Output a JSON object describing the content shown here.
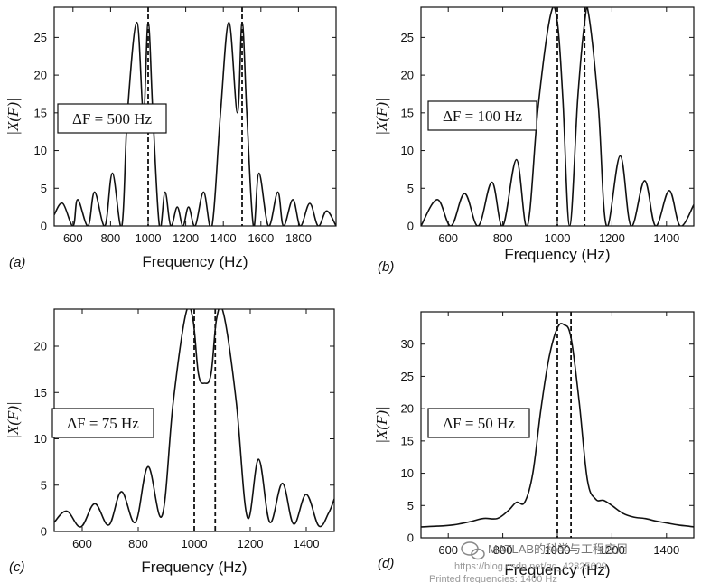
{
  "chart_data": [
    {
      "type": "line",
      "panel_label": "(a)",
      "xlabel": "Frequency (Hz)",
      "ylabel": "|X(F)|",
      "annotation": "ΔF = 500 Hz",
      "xlim": [
        500,
        2000
      ],
      "ylim": [
        0,
        29
      ],
      "xticks": [
        600,
        800,
        1000,
        1200,
        1400,
        1600,
        1800
      ],
      "yticks": [
        0,
        5,
        10,
        15,
        20,
        25
      ],
      "dashed_lines": [
        1000,
        1500
      ],
      "series": [
        {
          "x": [
            500,
            545,
            600,
            625,
            680,
            715,
            770,
            810,
            860,
            890,
            940,
            975,
            1000,
            1025,
            1060,
            1090,
            1120,
            1155,
            1185,
            1215,
            1250,
            1295,
            1340,
            1385,
            1430,
            1475,
            1500,
            1525,
            1560,
            1590,
            1640,
            1690,
            1720,
            1770,
            1810,
            1860,
            1905,
            1950,
            2000
          ],
          "y": [
            1.5,
            3,
            0,
            3.5,
            0,
            4.5,
            0,
            7,
            0,
            15,
            27,
            15,
            27,
            15,
            0,
            4.5,
            0,
            2.5,
            0,
            2.5,
            0,
            4.5,
            0,
            15,
            27,
            15,
            27,
            15,
            0,
            7,
            0,
            4.5,
            0,
            3.5,
            0,
            3,
            0,
            2,
            0
          ]
        }
      ]
    },
    {
      "type": "line",
      "panel_label": "(b)",
      "xlabel": "Frequency (Hz)",
      "ylabel": "|X(F)|",
      "annotation": "ΔF = 100 Hz",
      "xlim": [
        500,
        1500
      ],
      "ylim": [
        0,
        29
      ],
      "xticks": [
        600,
        800,
        1000,
        1200,
        1400
      ],
      "yticks": [
        0,
        5,
        10,
        15,
        20,
        25
      ],
      "dashed_lines": [
        1000,
        1100
      ],
      "series": [
        {
          "x": [
            500,
            560,
            610,
            660,
            710,
            760,
            800,
            850,
            890,
            930,
            975,
            1000,
            1020,
            1045,
            1075,
            1100,
            1115,
            1150,
            1180,
            1230,
            1270,
            1320,
            1360,
            1410,
            1450,
            1500
          ],
          "y": [
            0,
            3.5,
            0,
            4.3,
            0,
            5.8,
            0,
            8.8,
            0,
            16,
            28,
            27,
            17,
            0,
            17,
            27,
            28,
            16,
            0,
            9.3,
            0,
            6,
            0,
            4.7,
            0,
            2.8
          ]
        }
      ]
    },
    {
      "type": "line",
      "panel_label": "(c)",
      "xlabel": "Frequency (Hz)",
      "ylabel": "|X(F)|",
      "annotation": "ΔF = 75 Hz",
      "xlim": [
        500,
        1500
      ],
      "ylim": [
        0,
        24
      ],
      "xticks": [
        600,
        800,
        1000,
        1200,
        1400
      ],
      "yticks": [
        0,
        5,
        10,
        15,
        20
      ],
      "dashed_lines": [
        1000,
        1075
      ],
      "series": [
        {
          "x": [
            500,
            545,
            595,
            645,
            695,
            740,
            790,
            835,
            885,
            925,
            970,
            995,
            1015,
            1037,
            1060,
            1080,
            1105,
            1150,
            1190,
            1230,
            1270,
            1315,
            1355,
            1400,
            1445,
            1480,
            1500
          ],
          "y": [
            1,
            2.2,
            0.5,
            3,
            0.7,
            4.3,
            1,
            7,
            1.7,
            14,
            23.5,
            23,
            17,
            16,
            17,
            23,
            23.5,
            14,
            1.5,
            7.8,
            1,
            5.2,
            0.8,
            4,
            0.6,
            2,
            3.5
          ]
        }
      ]
    },
    {
      "type": "line",
      "panel_label": "(d)",
      "xlabel": "Frequency (Hz)",
      "ylabel": "|X(F)|",
      "annotation": "ΔF = 50 Hz",
      "xlim": [
        500,
        1500
      ],
      "ylim": [
        0,
        35
      ],
      "xticks": [
        600,
        800,
        1000,
        1200,
        1400
      ],
      "yticks": [
        0,
        5,
        10,
        15,
        20,
        25,
        30
      ],
      "dashed_lines": [
        1000,
        1050
      ],
      "series": [
        {
          "x": [
            500,
            560,
            620,
            680,
            730,
            780,
            820,
            850,
            880,
            910,
            940,
            970,
            1000,
            1025,
            1050,
            1080,
            1110,
            1140,
            1170,
            1200,
            1240,
            1280,
            1320,
            1360,
            1400,
            1440,
            1480,
            1500
          ],
          "y": [
            1.7,
            1.8,
            2,
            2.5,
            3,
            3,
            4.2,
            5.5,
            5.5,
            10,
            20,
            28,
            32.5,
            33,
            31,
            21,
            9,
            6,
            5.8,
            5,
            3.8,
            3.2,
            3,
            2.6,
            2.3,
            2,
            1.8,
            1.7
          ]
        }
      ]
    }
  ],
  "watermark": {
    "text": "MATLAB的科学与工程应用",
    "url": "https://blog.csdn.net/qq_42825609",
    "bottom_text": "Printed frequencies: 1400 Hz"
  }
}
